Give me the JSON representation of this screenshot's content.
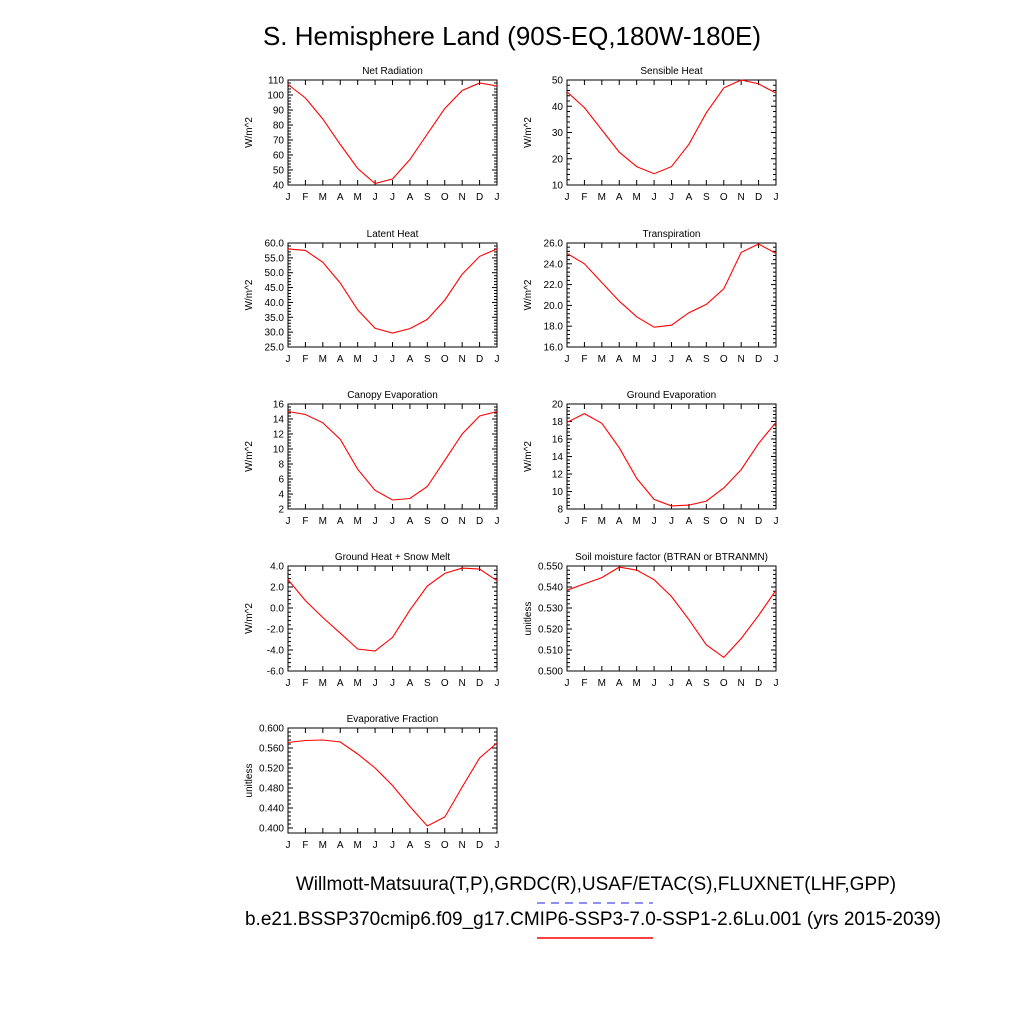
{
  "figure": {
    "title": "S. Hemisphere Land (90S-EQ,180W-180E)",
    "footer": {
      "line1": "Willmott-Matsuura(T,P),GRDC(R),USAF/ETAC(S),FLUXNET(LHF,GPP)",
      "line2": "b.e21.BSSP370cmip6.f09_g17.CMIP6-SSP3-7.0-SSP1-2.6Lu.001 (yrs 2015-2039)",
      "line1_marker_color": "#6a6af0",
      "line2_marker_color": "#ff0000"
    }
  },
  "colors": {
    "series": "#ff0000",
    "axes": "#000000",
    "background": "#ffffff"
  },
  "chart_data": [
    {
      "type": "line",
      "title": "Net Radiation",
      "ylabel": "W/m^2",
      "x": [
        "J",
        "F",
        "M",
        "A",
        "M",
        "J",
        "J",
        "A",
        "S",
        "O",
        "N",
        "D",
        "J"
      ],
      "ylim": [
        40,
        110
      ],
      "yticks": [
        "40",
        "50",
        "60",
        "70",
        "80",
        "90",
        "100",
        "110"
      ],
      "series": [
        {
          "values": [
            107,
            98,
            84,
            67,
            51,
            41,
            44,
            57,
            74,
            91,
            103,
            108,
            106
          ]
        }
      ]
    },
    {
      "type": "line",
      "title": "Sensible Heat",
      "ylabel": "W/m^2",
      "x": [
        "J",
        "F",
        "M",
        "A",
        "M",
        "J",
        "J",
        "A",
        "S",
        "O",
        "N",
        "D",
        "J"
      ],
      "ylim": [
        10,
        50
      ],
      "yticks": [
        "10",
        "20",
        "30",
        "40",
        "50"
      ],
      "series": [
        {
          "values": [
            45.5,
            39.5,
            31,
            22.5,
            17,
            14.3,
            17,
            25.5,
            37.5,
            47,
            50,
            48.5,
            45
          ]
        }
      ]
    },
    {
      "type": "line",
      "title": "Latent Heat",
      "ylabel": "W/m^2",
      "x": [
        "J",
        "F",
        "M",
        "A",
        "M",
        "J",
        "J",
        "A",
        "S",
        "O",
        "N",
        "D",
        "J"
      ],
      "ylim": [
        25,
        60
      ],
      "yticks": [
        "25.0",
        "30.0",
        "35.0",
        "40.0",
        "45.0",
        "50.0",
        "55.0",
        "60.0"
      ],
      "series": [
        {
          "values": [
            58.0,
            57.5,
            53.5,
            46.5,
            37.5,
            31.3,
            29.7,
            31.2,
            34.3,
            40.8,
            49.5,
            55.5,
            58.0
          ]
        }
      ]
    },
    {
      "type": "line",
      "title": "Transpiration",
      "ylabel": "W/m^2",
      "x": [
        "J",
        "F",
        "M",
        "A",
        "M",
        "J",
        "J",
        "A",
        "S",
        "O",
        "N",
        "D",
        "J"
      ],
      "ylim": [
        16,
        26
      ],
      "yticks": [
        "16.0",
        "18.0",
        "20.0",
        "22.0",
        "24.0",
        "26.0"
      ],
      "series": [
        {
          "values": [
            25.0,
            24.0,
            22.2,
            20.4,
            18.9,
            17.9,
            18.1,
            19.3,
            20.1,
            21.6,
            25.1,
            25.9,
            25.0
          ]
        }
      ]
    },
    {
      "type": "line",
      "title": "Canopy Evaporation",
      "ylabel": "W/m^2",
      "x": [
        "J",
        "F",
        "M",
        "A",
        "M",
        "J",
        "J",
        "A",
        "S",
        "O",
        "N",
        "D",
        "J"
      ],
      "ylim": [
        2,
        16
      ],
      "yticks": [
        "2",
        "4",
        "6",
        "8",
        "10",
        "12",
        "14",
        "16"
      ],
      "series": [
        {
          "values": [
            15.0,
            14.6,
            13.5,
            11.3,
            7.3,
            4.5,
            3.2,
            3.4,
            5.0,
            8.5,
            12.0,
            14.4,
            15.0
          ]
        }
      ]
    },
    {
      "type": "line",
      "title": "Ground Evaporation",
      "ylabel": "W/m^2",
      "x": [
        "J",
        "F",
        "M",
        "A",
        "M",
        "J",
        "J",
        "A",
        "S",
        "O",
        "N",
        "D",
        "J"
      ],
      "ylim": [
        8,
        20
      ],
      "yticks": [
        "8",
        "10",
        "12",
        "14",
        "16",
        "18",
        "20"
      ],
      "series": [
        {
          "values": [
            17.9,
            18.9,
            17.8,
            15.0,
            11.5,
            9.1,
            8.35,
            8.45,
            8.9,
            10.4,
            12.5,
            15.5,
            17.9
          ]
        }
      ]
    },
    {
      "type": "line",
      "title": "Ground Heat + Snow Melt",
      "ylabel": "W/m^2",
      "x": [
        "J",
        "F",
        "M",
        "A",
        "M",
        "J",
        "J",
        "A",
        "S",
        "O",
        "N",
        "D",
        "J"
      ],
      "ylim": [
        -6,
        4
      ],
      "yticks": [
        "-6.0",
        "-4.0",
        "-2.0",
        "0.0",
        "2.0",
        "4.0"
      ],
      "series": [
        {
          "values": [
            2.7,
            0.7,
            -0.9,
            -2.4,
            -3.9,
            -4.1,
            -2.8,
            -0.2,
            2.1,
            3.3,
            3.8,
            3.7,
            2.6
          ]
        }
      ]
    },
    {
      "type": "line",
      "title": "Soil moisture factor (BTRAN or BTRANMN)",
      "ylabel": "unitless",
      "x": [
        "J",
        "F",
        "M",
        "A",
        "M",
        "J",
        "J",
        "A",
        "S",
        "O",
        "N",
        "D",
        "J"
      ],
      "ylim": [
        0.5,
        0.55
      ],
      "yticks": [
        "0.500",
        "0.510",
        "0.520",
        "0.530",
        "0.540",
        "0.550"
      ],
      "series": [
        {
          "values": [
            0.5385,
            0.5415,
            0.5445,
            0.5495,
            0.548,
            0.5435,
            0.5355,
            0.5245,
            0.5125,
            0.5065,
            0.5155,
            0.5265,
            0.5385
          ]
        }
      ]
    },
    {
      "type": "line",
      "title": "Evaporative Fraction",
      "ylabel": "unitless",
      "x": [
        "J",
        "F",
        "M",
        "A",
        "M",
        "J",
        "J",
        "A",
        "S",
        "O",
        "N",
        "D",
        "J"
      ],
      "ylim": [
        0.39,
        0.6
      ],
      "yticks": [
        "0.400",
        "0.440",
        "0.480",
        "0.520",
        "0.560",
        "0.600"
      ],
      "series": [
        {
          "values": [
            0.571,
            0.575,
            0.576,
            0.572,
            0.548,
            0.52,
            0.485,
            0.443,
            0.404,
            0.422,
            0.482,
            0.54,
            0.57
          ]
        }
      ]
    }
  ]
}
